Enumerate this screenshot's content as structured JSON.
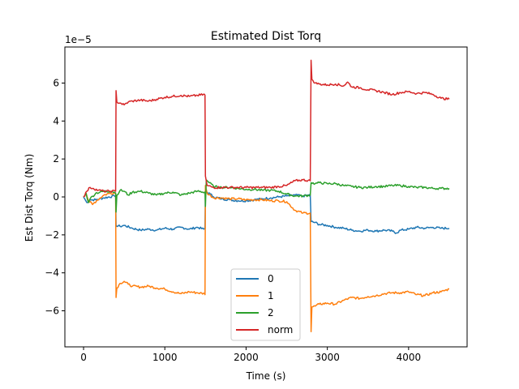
{
  "chart_data": {
    "type": "line",
    "title": "Estimated Dist Torq",
    "xlabel": "Time (s)",
    "ylabel": "Est Dist Torq (Nm)",
    "offset_text": "1e−5",
    "xlim": [
      -230,
      4720
    ],
    "ylim": [
      -7.9,
      7.9
    ],
    "xticks": [
      0,
      1000,
      2000,
      3000,
      4000
    ],
    "yticks": [
      -6,
      -4,
      -2,
      0,
      2,
      4,
      6
    ],
    "xtick_labels": [
      "0",
      "1000",
      "2000",
      "3000",
      "4000"
    ],
    "ytick_labels": [
      "−6",
      "−4",
      "−2",
      "0",
      "2",
      "4",
      "6"
    ],
    "grid": false,
    "legend_position": "lower-center",
    "series": [
      {
        "name": "0",
        "color": "#1f77b4",
        "points": [
          [
            0,
            0
          ],
          [
            40,
            -0.3
          ],
          [
            80,
            -0.15
          ],
          [
            150,
            -0.15
          ],
          [
            250,
            -0.05
          ],
          [
            380,
            0.05
          ],
          [
            395,
            0
          ],
          [
            400,
            -1.5
          ],
          [
            450,
            -1.55
          ],
          [
            500,
            -1.5
          ],
          [
            600,
            -1.65
          ],
          [
            700,
            -1.75
          ],
          [
            800,
            -1.7
          ],
          [
            900,
            -1.75
          ],
          [
            1000,
            -1.65
          ],
          [
            1100,
            -1.7
          ],
          [
            1200,
            -1.6
          ],
          [
            1300,
            -1.7
          ],
          [
            1400,
            -1.6
          ],
          [
            1480,
            -1.7
          ],
          [
            1495,
            -1.65
          ],
          [
            1500,
            0.3
          ],
          [
            1560,
            0.15
          ],
          [
            1600,
            0
          ],
          [
            1700,
            -0.1
          ],
          [
            1800,
            -0.15
          ],
          [
            1900,
            -0.2
          ],
          [
            2000,
            -0.2
          ],
          [
            2100,
            -0.15
          ],
          [
            2200,
            -0.1
          ],
          [
            2300,
            -0.05
          ],
          [
            2400,
            0
          ],
          [
            2500,
            0.05
          ],
          [
            2600,
            0.1
          ],
          [
            2700,
            0.05
          ],
          [
            2790,
            0.1
          ],
          [
            2800,
            -1.3
          ],
          [
            2850,
            -1.35
          ],
          [
            2900,
            -1.45
          ],
          [
            3000,
            -1.5
          ],
          [
            3100,
            -1.6
          ],
          [
            3200,
            -1.65
          ],
          [
            3300,
            -1.75
          ],
          [
            3400,
            -1.8
          ],
          [
            3500,
            -1.75
          ],
          [
            3600,
            -1.8
          ],
          [
            3700,
            -1.75
          ],
          [
            3800,
            -1.8
          ],
          [
            3850,
            -1.9
          ],
          [
            3900,
            -1.75
          ],
          [
            4000,
            -1.7
          ],
          [
            4100,
            -1.6
          ],
          [
            4200,
            -1.65
          ],
          [
            4300,
            -1.6
          ],
          [
            4400,
            -1.65
          ],
          [
            4500,
            -1.65
          ]
        ]
      },
      {
        "name": "1",
        "color": "#ff7f0e",
        "points": [
          [
            0,
            0
          ],
          [
            30,
            0.2
          ],
          [
            60,
            -0.2
          ],
          [
            110,
            -0.4
          ],
          [
            160,
            -0.2
          ],
          [
            250,
            0.1
          ],
          [
            330,
            0.2
          ],
          [
            395,
            0.2
          ],
          [
            400,
            -5.3
          ],
          [
            410,
            -4.8
          ],
          [
            450,
            -4.55
          ],
          [
            500,
            -4.45
          ],
          [
            550,
            -4.6
          ],
          [
            600,
            -4.7
          ],
          [
            700,
            -4.75
          ],
          [
            800,
            -4.7
          ],
          [
            900,
            -4.8
          ],
          [
            1000,
            -4.85
          ],
          [
            1100,
            -5
          ],
          [
            1200,
            -5.1
          ],
          [
            1300,
            -5
          ],
          [
            1400,
            -5.05
          ],
          [
            1490,
            -5.1
          ],
          [
            1495,
            -5.15
          ],
          [
            1500,
            0.6
          ],
          [
            1520,
            0.2
          ],
          [
            1600,
            -0.05
          ],
          [
            1700,
            -0.05
          ],
          [
            1800,
            -0.1
          ],
          [
            1900,
            -0.1
          ],
          [
            2000,
            -0.15
          ],
          [
            2100,
            -0.15
          ],
          [
            2200,
            -0.15
          ],
          [
            2300,
            -0.2
          ],
          [
            2400,
            -0.2
          ],
          [
            2500,
            -0.25
          ],
          [
            2600,
            -0.7
          ],
          [
            2700,
            -0.85
          ],
          [
            2790,
            -0.85
          ],
          [
            2800,
            -7.1
          ],
          [
            2810,
            -5.8
          ],
          [
            2850,
            -5.75
          ],
          [
            2900,
            -5.65
          ],
          [
            3000,
            -5.6
          ],
          [
            3100,
            -5.65
          ],
          [
            3200,
            -5.45
          ],
          [
            3300,
            -5.3
          ],
          [
            3400,
            -5.35
          ],
          [
            3500,
            -5.25
          ],
          [
            3600,
            -5.2
          ],
          [
            3700,
            -5.1
          ],
          [
            3800,
            -5.05
          ],
          [
            3900,
            -5.05
          ],
          [
            4000,
            -5
          ],
          [
            4100,
            -5.15
          ],
          [
            4200,
            -5.2
          ],
          [
            4300,
            -5.05
          ],
          [
            4400,
            -5
          ],
          [
            4500,
            -4.85
          ]
        ]
      },
      {
        "name": "2",
        "color": "#2ca02c",
        "points": [
          [
            0,
            0
          ],
          [
            30,
            0.2
          ],
          [
            60,
            -0.3
          ],
          [
            80,
            -0.1
          ],
          [
            150,
            0.2
          ],
          [
            250,
            0.3
          ],
          [
            350,
            0.3
          ],
          [
            395,
            0.2
          ],
          [
            400,
            -0.8
          ],
          [
            410,
            0.1
          ],
          [
            450,
            0.35
          ],
          [
            500,
            0.3
          ],
          [
            550,
            0.1
          ],
          [
            600,
            0.25
          ],
          [
            700,
            0.3
          ],
          [
            800,
            0.2
          ],
          [
            900,
            0.1
          ],
          [
            1000,
            0.2
          ],
          [
            1100,
            0.25
          ],
          [
            1200,
            0.1
          ],
          [
            1300,
            0.2
          ],
          [
            1400,
            0.3
          ],
          [
            1490,
            0.25
          ],
          [
            1495,
            0.2
          ],
          [
            1500,
            -0.5
          ],
          [
            1510,
            0.9
          ],
          [
            1600,
            0.55
          ],
          [
            1700,
            0.5
          ],
          [
            1800,
            0.5
          ],
          [
            1900,
            0.45
          ],
          [
            2000,
            0.4
          ],
          [
            2100,
            0.4
          ],
          [
            2200,
            0.35
          ],
          [
            2300,
            0.35
          ],
          [
            2400,
            0.3
          ],
          [
            2500,
            0.15
          ],
          [
            2600,
            0.05
          ],
          [
            2700,
            0.05
          ],
          [
            2790,
            0.1
          ],
          [
            2800,
            0.75
          ],
          [
            2850,
            0.7
          ],
          [
            2900,
            0.75
          ],
          [
            3000,
            0.7
          ],
          [
            3100,
            0.7
          ],
          [
            3200,
            0.6
          ],
          [
            3300,
            0.55
          ],
          [
            3400,
            0.5
          ],
          [
            3500,
            0.5
          ],
          [
            3600,
            0.55
          ],
          [
            3700,
            0.55
          ],
          [
            3800,
            0.6
          ],
          [
            3900,
            0.6
          ],
          [
            4000,
            0.55
          ],
          [
            4100,
            0.5
          ],
          [
            4200,
            0.5
          ],
          [
            4300,
            0.45
          ],
          [
            4400,
            0.45
          ],
          [
            4500,
            0.45
          ]
        ]
      },
      {
        "name": "norm",
        "color": "#d62728",
        "points": [
          [
            0,
            0
          ],
          [
            40,
            0.3
          ],
          [
            80,
            0.5
          ],
          [
            120,
            0.45
          ],
          [
            180,
            0.35
          ],
          [
            250,
            0.3
          ],
          [
            330,
            0.3
          ],
          [
            395,
            0.3
          ],
          [
            400,
            5.6
          ],
          [
            410,
            5.0
          ],
          [
            450,
            4.95
          ],
          [
            500,
            4.85
          ],
          [
            550,
            5
          ],
          [
            600,
            5.05
          ],
          [
            700,
            5.1
          ],
          [
            800,
            5.05
          ],
          [
            900,
            5.15
          ],
          [
            1000,
            5.25
          ],
          [
            1100,
            5.3
          ],
          [
            1200,
            5.35
          ],
          [
            1300,
            5.3
          ],
          [
            1400,
            5.35
          ],
          [
            1490,
            5.4
          ],
          [
            1495,
            5.35
          ],
          [
            1500,
            1.1
          ],
          [
            1520,
            0.6
          ],
          [
            1600,
            0.5
          ],
          [
            1700,
            0.5
          ],
          [
            1800,
            0.5
          ],
          [
            1900,
            0.5
          ],
          [
            2000,
            0.5
          ],
          [
            2100,
            0.5
          ],
          [
            2200,
            0.5
          ],
          [
            2300,
            0.5
          ],
          [
            2400,
            0.55
          ],
          [
            2500,
            0.6
          ],
          [
            2600,
            0.85
          ],
          [
            2700,
            0.9
          ],
          [
            2790,
            0.85
          ],
          [
            2800,
            7.2
          ],
          [
            2810,
            6.2
          ],
          [
            2850,
            6.0
          ],
          [
            2900,
            5.95
          ],
          [
            3000,
            5.9
          ],
          [
            3100,
            5.95
          ],
          [
            3200,
            5.85
          ],
          [
            3250,
            6.05
          ],
          [
            3300,
            5.8
          ],
          [
            3400,
            5.75
          ],
          [
            3500,
            5.65
          ],
          [
            3600,
            5.6
          ],
          [
            3700,
            5.5
          ],
          [
            3800,
            5.4
          ],
          [
            3900,
            5.5
          ],
          [
            4000,
            5.55
          ],
          [
            4100,
            5.45
          ],
          [
            4200,
            5.5
          ],
          [
            4300,
            5.4
          ],
          [
            4400,
            5.2
          ],
          [
            4500,
            5.15
          ]
        ]
      }
    ]
  }
}
